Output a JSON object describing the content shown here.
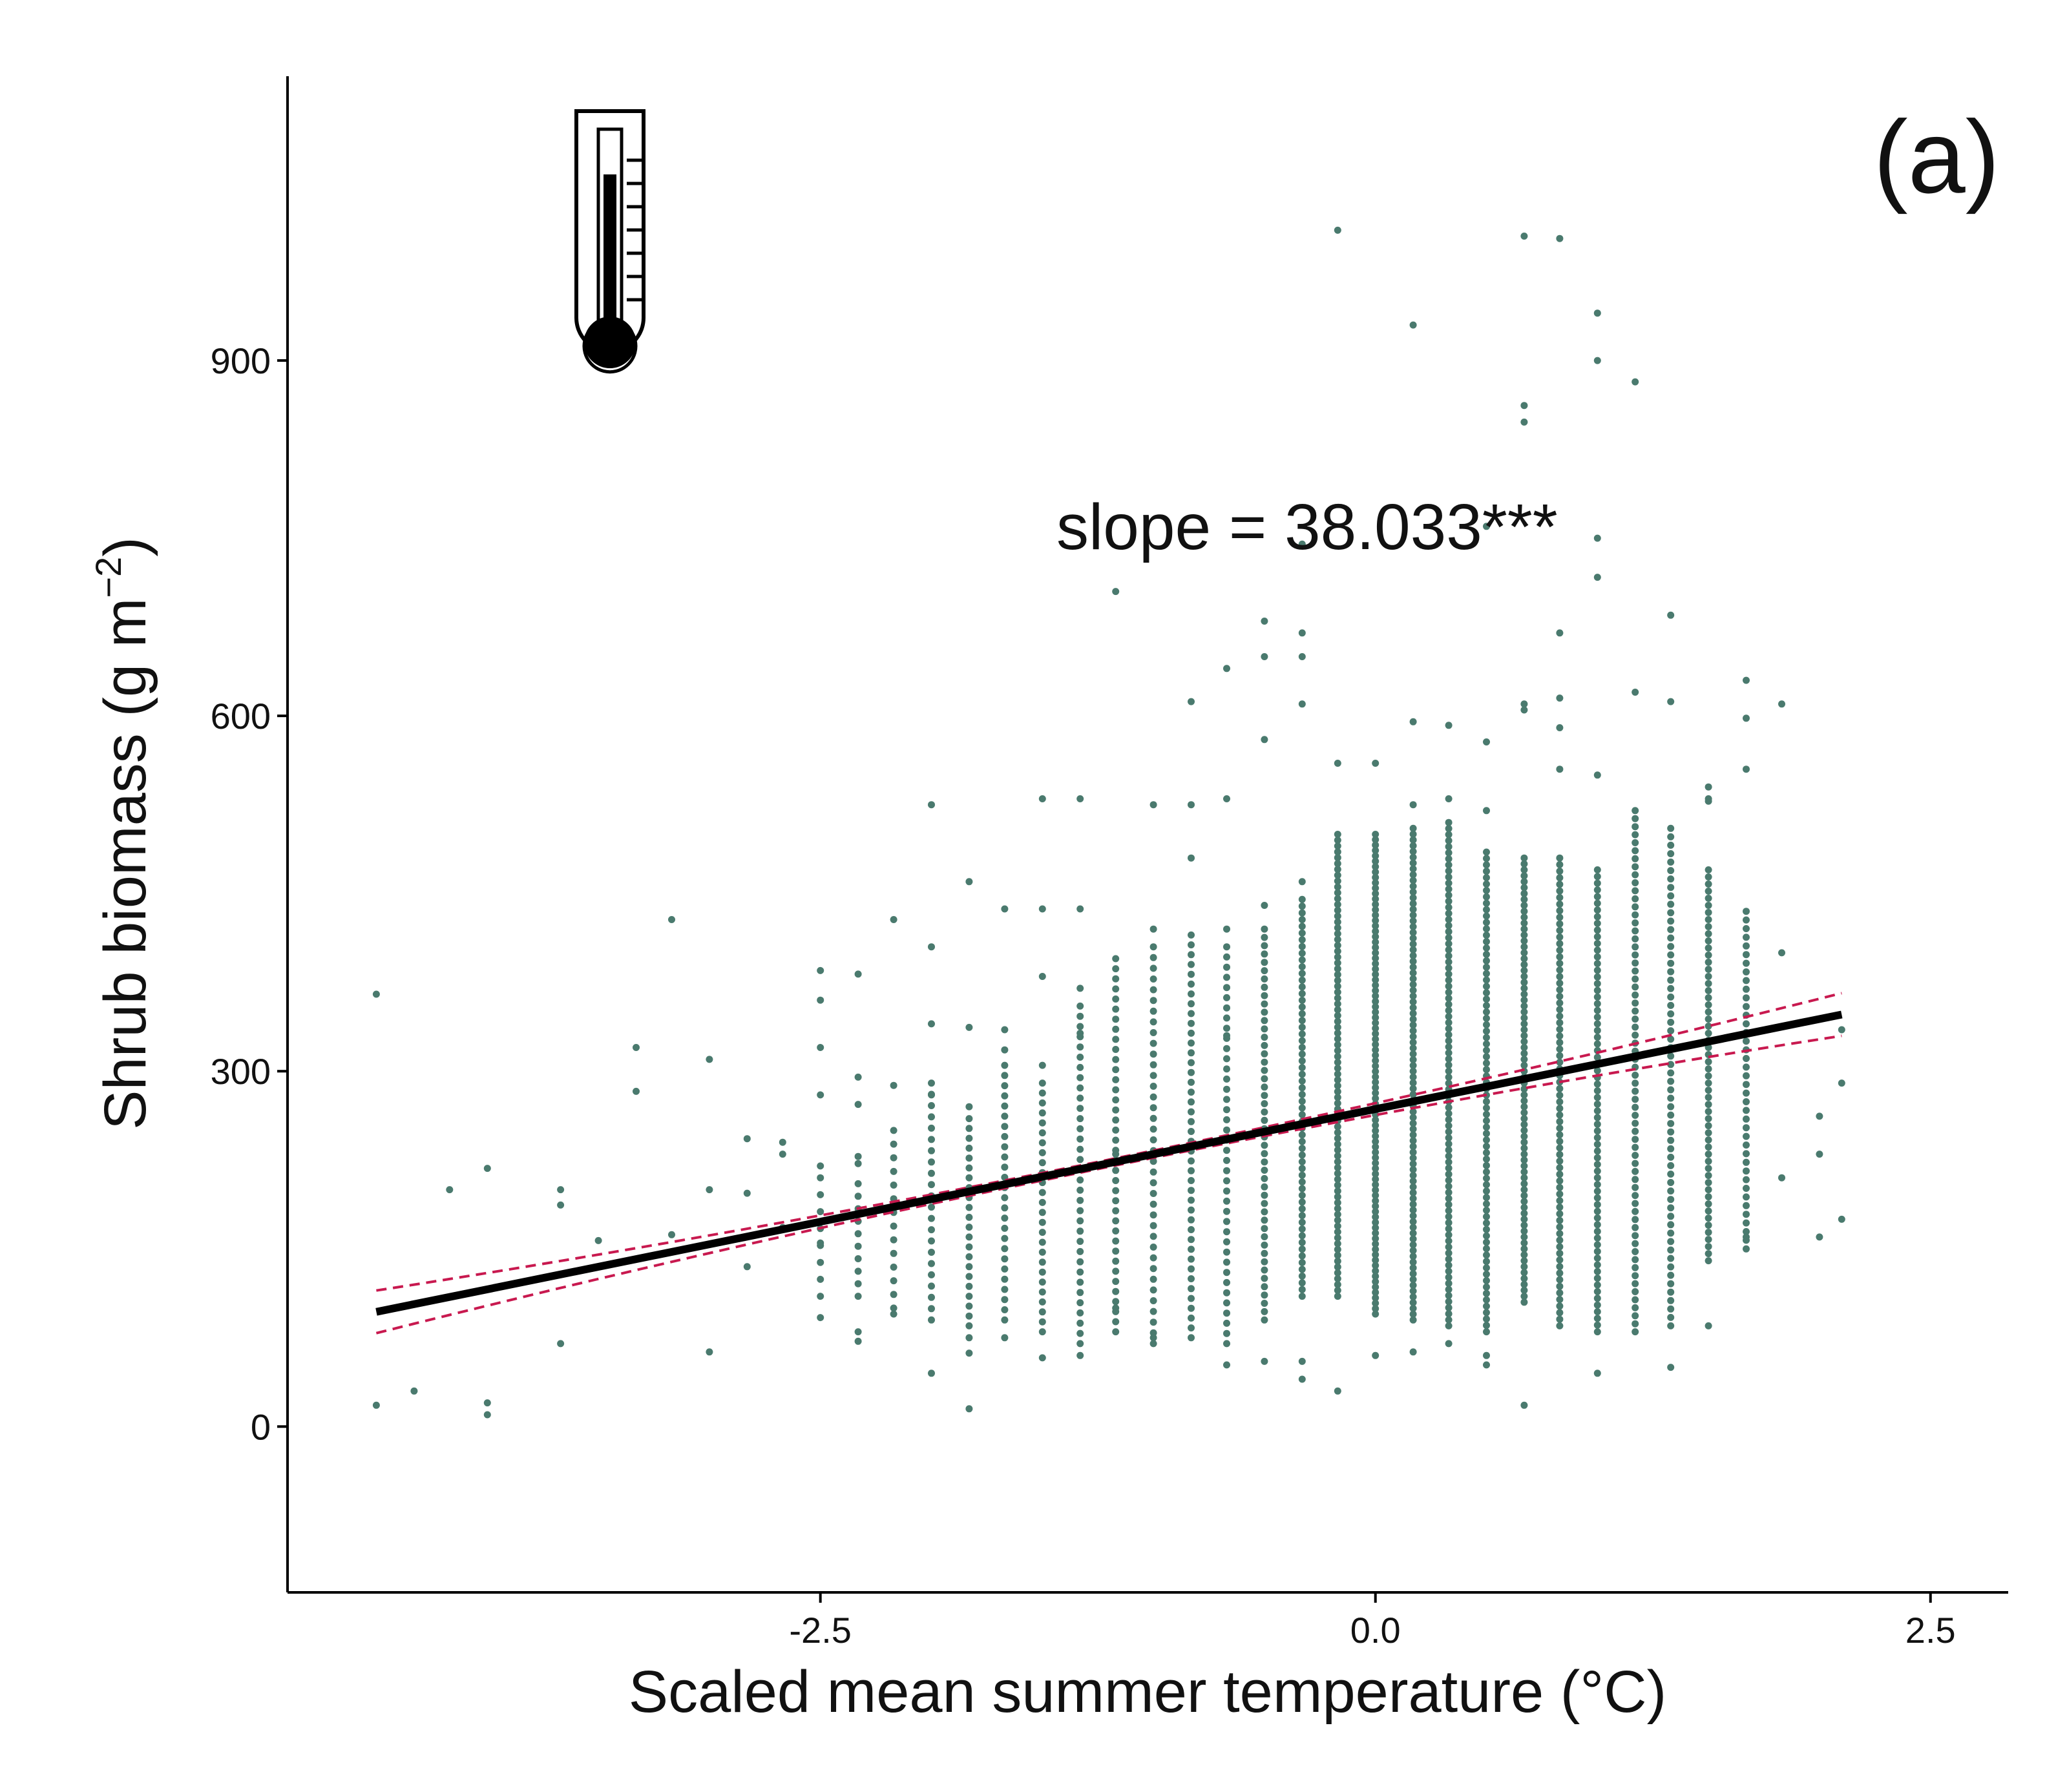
{
  "chart_data": {
    "type": "scatter",
    "panel_label": "(a)",
    "xlabel": "Scaled mean summer temperature (°C)",
    "ylabel": "Shrub biomass (g m⁻²)",
    "ylabel_parts": {
      "main": "Shrub biomass ",
      "unit": "(g m",
      "exp": "−2",
      "close": ")"
    },
    "annotation": "slope = 38.033***",
    "xlim": [
      -4.9,
      2.85
    ],
    "ylim": [
      -140,
      1140
    ],
    "x_ticks": [
      -2.5,
      0.0,
      2.5
    ],
    "x_tick_labels": [
      "-2.5",
      "0.0",
      "2.5"
    ],
    "y_ticks": [
      0,
      300,
      600,
      900
    ],
    "y_tick_labels": [
      "0",
      "300",
      "600",
      "900"
    ],
    "grid": false,
    "colors": {
      "points": "#4a7a6e",
      "fit_line": "#000000",
      "ci_lines": "#c8194f",
      "axis": "#000000"
    },
    "icon": "thermometer-icon",
    "fit": {
      "x_start": -4.5,
      "x_end": 2.1,
      "intercept": 268,
      "slope": 38.033,
      "ci_halfwidth_at_ends": 18
    },
    "columns": [
      {
        "x": -4.5,
        "y": [
          18,
          365
        ]
      },
      {
        "x": -4.33,
        "y": [
          30
        ]
      },
      {
        "x": -4.17,
        "y": [
          200
        ]
      },
      {
        "x": -4.0,
        "y": [
          10,
          20,
          218
        ]
      },
      {
        "x": -3.67,
        "y": [
          70,
          200,
          187
        ]
      },
      {
        "x": -3.5,
        "y": [
          157
        ]
      },
      {
        "x": -3.33,
        "y": [
          283,
          320
        ]
      },
      {
        "x": -3.17,
        "y": [
          428,
          162
        ]
      },
      {
        "x": -3.0,
        "y": [
          63,
          310,
          200
        ]
      },
      {
        "x": -2.83,
        "y": [
          243,
          197,
          135
        ]
      },
      {
        "x": -2.67,
        "y": [
          240,
          230,
          168
        ]
      },
      {
        "x": -2.5,
        "y": [
          92,
          155,
          220,
          280,
          320,
          360,
          385
        ]
      },
      {
        "x": -2.33,
        "y": [
          72,
          80,
          222,
          228,
          272,
          295,
          382
        ]
      },
      {
        "x": -2.17,
        "y": [
          95,
          288,
          428
        ]
      },
      {
        "x": -2.0,
        "y": [
          45,
          193,
          280,
          340,
          405,
          525
        ]
      },
      {
        "x": -1.83,
        "y": [
          15,
          62,
          75,
          270,
          337,
          460
        ]
      },
      {
        "x": -1.67,
        "y": [
          75,
          318,
          335,
          437
        ]
      },
      {
        "x": -1.5,
        "y": [
          58,
          305,
          380,
          437,
          530
        ]
      },
      {
        "x": -1.33,
        "y": [
          60,
          332,
          370,
          437,
          530
        ]
      },
      {
        "x": -1.17,
        "y": [
          100,
          230,
          705
        ]
      },
      {
        "x": -1.0,
        "y": [
          75,
          420,
          525
        ]
      },
      {
        "x": -0.83,
        "y": [
          480,
          525,
          612
        ]
      },
      {
        "x": -0.67,
        "y": [
          52,
          330,
          420,
          530,
          640
        ]
      },
      {
        "x": -0.5,
        "y": [
          55,
          440,
          580,
          650,
          680
        ]
      },
      {
        "x": -0.33,
        "y": [
          40,
          55,
          460,
          610,
          650,
          670,
          745
        ]
      },
      {
        "x": -0.17,
        "y": [
          30,
          560,
          1010
        ]
      },
      {
        "x": 0.0,
        "y": [
          60,
          560
        ]
      },
      {
        "x": 0.17,
        "y": [
          63,
          525,
          595,
          930
        ]
      },
      {
        "x": 0.33,
        "y": [
          70,
          530,
          592
        ]
      },
      {
        "x": 0.5,
        "y": [
          52,
          60,
          520,
          578,
          760
        ]
      },
      {
        "x": 0.67,
        "y": [
          18,
          610,
          605,
          848,
          862,
          1005
        ]
      },
      {
        "x": 0.83,
        "y": [
          555,
          590,
          615,
          670,
          1003
        ]
      },
      {
        "x": 1.0,
        "y": [
          45,
          550,
          717,
          750,
          900,
          940
        ]
      },
      {
        "x": 1.17,
        "y": [
          620,
          882
        ]
      },
      {
        "x": 1.33,
        "y": [
          50,
          612,
          685
        ]
      },
      {
        "x": 1.5,
        "y": [
          85,
          528,
          530,
          540
        ]
      },
      {
        "x": 1.67,
        "y": [
          160,
          555,
          598,
          630
        ]
      },
      {
        "x": 1.83,
        "y": [
          210,
          400,
          610
        ]
      },
      {
        "x": 2.0,
        "y": [
          160,
          230,
          262
        ]
      },
      {
        "x": 2.1,
        "y": [
          175,
          290,
          335
        ]
      }
    ],
    "dense_bands": [
      {
        "x": -2.5,
        "lo": 110,
        "hi": 210,
        "n": 8
      },
      {
        "x": -2.33,
        "lo": 110,
        "hi": 205,
        "n": 10
      },
      {
        "x": -2.17,
        "lo": 100,
        "hi": 250,
        "n": 14
      },
      {
        "x": -2.0,
        "lo": 90,
        "hi": 290,
        "n": 22
      },
      {
        "x": -1.83,
        "lo": 85,
        "hi": 260,
        "n": 22
      },
      {
        "x": -1.67,
        "lo": 90,
        "hi": 305,
        "n": 26
      },
      {
        "x": -1.5,
        "lo": 80,
        "hi": 290,
        "n": 26
      },
      {
        "x": -1.33,
        "lo": 70,
        "hi": 355,
        "n": 34
      },
      {
        "x": -1.17,
        "lo": 80,
        "hi": 395,
        "n": 38
      },
      {
        "x": -1.0,
        "lo": 70,
        "hi": 405,
        "n": 38
      },
      {
        "x": -0.83,
        "lo": 75,
        "hi": 415,
        "n": 42
      },
      {
        "x": -0.67,
        "lo": 70,
        "hi": 405,
        "n": 40
      },
      {
        "x": -0.5,
        "lo": 90,
        "hi": 420,
        "n": 48
      },
      {
        "x": -0.33,
        "lo": 110,
        "hi": 445,
        "n": 60
      },
      {
        "x": -0.17,
        "lo": 110,
        "hi": 500,
        "n": 80
      },
      {
        "x": 0.0,
        "lo": 95,
        "hi": 500,
        "n": 90
      },
      {
        "x": 0.17,
        "lo": 90,
        "hi": 505,
        "n": 86
      },
      {
        "x": 0.33,
        "lo": 85,
        "hi": 510,
        "n": 84
      },
      {
        "x": 0.5,
        "lo": 80,
        "hi": 485,
        "n": 76
      },
      {
        "x": 0.67,
        "lo": 105,
        "hi": 480,
        "n": 76
      },
      {
        "x": 0.83,
        "lo": 85,
        "hi": 480,
        "n": 72
      },
      {
        "x": 1.0,
        "lo": 80,
        "hi": 470,
        "n": 70
      },
      {
        "x": 1.17,
        "lo": 80,
        "hi": 520,
        "n": 66
      },
      {
        "x": 1.33,
        "lo": 85,
        "hi": 505,
        "n": 60
      },
      {
        "x": 1.5,
        "lo": 140,
        "hi": 470,
        "n": 56
      },
      {
        "x": 1.67,
        "lo": 150,
        "hi": 435,
        "n": 40
      }
    ]
  }
}
